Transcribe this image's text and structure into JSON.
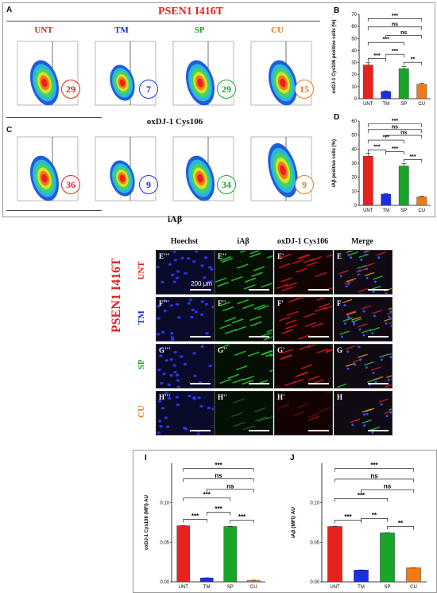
{
  "title": "PSEN1 I416T",
  "colors": {
    "UNT": "#e8211c",
    "TM": "#1b2ee0",
    "SP": "#18a52a",
    "CU": "#f07a17",
    "title": "#e8211c"
  },
  "panel_a": {
    "letter": "A",
    "conditions": [
      {
        "name": "UNT",
        "color": "#e8211c",
        "value": "29"
      },
      {
        "name": "TM",
        "color": "#1b2ee0",
        "value": "7"
      },
      {
        "name": "SP",
        "color": "#18a52a",
        "value": "29"
      },
      {
        "name": "CU",
        "color": "#f07a17",
        "value": "15"
      }
    ],
    "caption": "oxDJ-1 Cys106"
  },
  "panel_c": {
    "letter": "C",
    "values": [
      "36",
      "9",
      "34",
      "9"
    ],
    "caption": "iAβ"
  },
  "micro": {
    "columns": [
      "Hoechst",
      "iAβ",
      "oxDJ-1 Cys106",
      "Merge"
    ],
    "rows": [
      {
        "name": "UNT",
        "color": "#e8211c",
        "labels": [
          "E'''",
          "E''",
          "E'",
          "E"
        ]
      },
      {
        "name": "TM",
        "color": "#1b2ee0",
        "labels": [
          "F'''",
          "F''",
          "F'",
          "F"
        ]
      },
      {
        "name": "SP",
        "color": "#18a52a",
        "labels": [
          "G'''",
          "G''",
          "G'",
          "G"
        ]
      },
      {
        "name": "CU",
        "color": "#f07a17",
        "labels": [
          "H'''",
          "H''",
          "H'",
          "H"
        ]
      }
    ],
    "side_label": "PSEN1 I416T",
    "scale": "200 μm"
  },
  "chart_data": [
    {
      "letter": "B",
      "type": "bar",
      "categories": [
        "UNT",
        "TM",
        "SP",
        "CU"
      ],
      "values": [
        28,
        6,
        25,
        12
      ],
      "ylim": [
        0,
        70
      ],
      "ticks": [
        0,
        10,
        20,
        30,
        40,
        50,
        60,
        70
      ],
      "ylabel": "oxDJ-1 Cys106 positive cells (%)",
      "sig": [
        "***",
        "ns",
        "***",
        "***",
        "**",
        "***",
        "ns"
      ]
    },
    {
      "letter": "D",
      "type": "bar",
      "categories": [
        "UNT",
        "TM",
        "SP",
        "CU"
      ],
      "values": [
        35,
        8,
        28,
        6
      ],
      "ylim": [
        0,
        60
      ],
      "ticks": [
        0,
        10,
        20,
        30,
        40,
        50,
        60
      ],
      "ylabel": "iAβ positive cells (%)",
      "sig": [
        "***",
        "ns",
        "***",
        "***",
        "***",
        "***",
        "ns"
      ]
    },
    {
      "letter": "I",
      "type": "bar",
      "categories": [
        "UNT",
        "TM",
        "SP",
        "CU"
      ],
      "values": [
        0.071,
        0.005,
        0.07,
        0.002
      ],
      "ylim": [
        0,
        0.15
      ],
      "ticks": [
        0,
        0.05,
        0.1
      ],
      "ylabel": "oxDJ-1 Cys106 (MFI) AU",
      "sig": [
        "***",
        "ns",
        "***",
        "***",
        "***",
        "***",
        "ns"
      ]
    },
    {
      "letter": "J",
      "type": "bar",
      "categories": [
        "UNT",
        "TM",
        "SP",
        "CU"
      ],
      "values": [
        0.07,
        0.015,
        0.062,
        0.018
      ],
      "ylim": [
        0,
        0.15
      ],
      "ticks": [
        0,
        0.05,
        0.1
      ],
      "ylabel": "iAβ (MFI) AU",
      "sig": [
        "***",
        "ns",
        "***",
        "**",
        "**",
        "***",
        "ns"
      ]
    }
  ]
}
